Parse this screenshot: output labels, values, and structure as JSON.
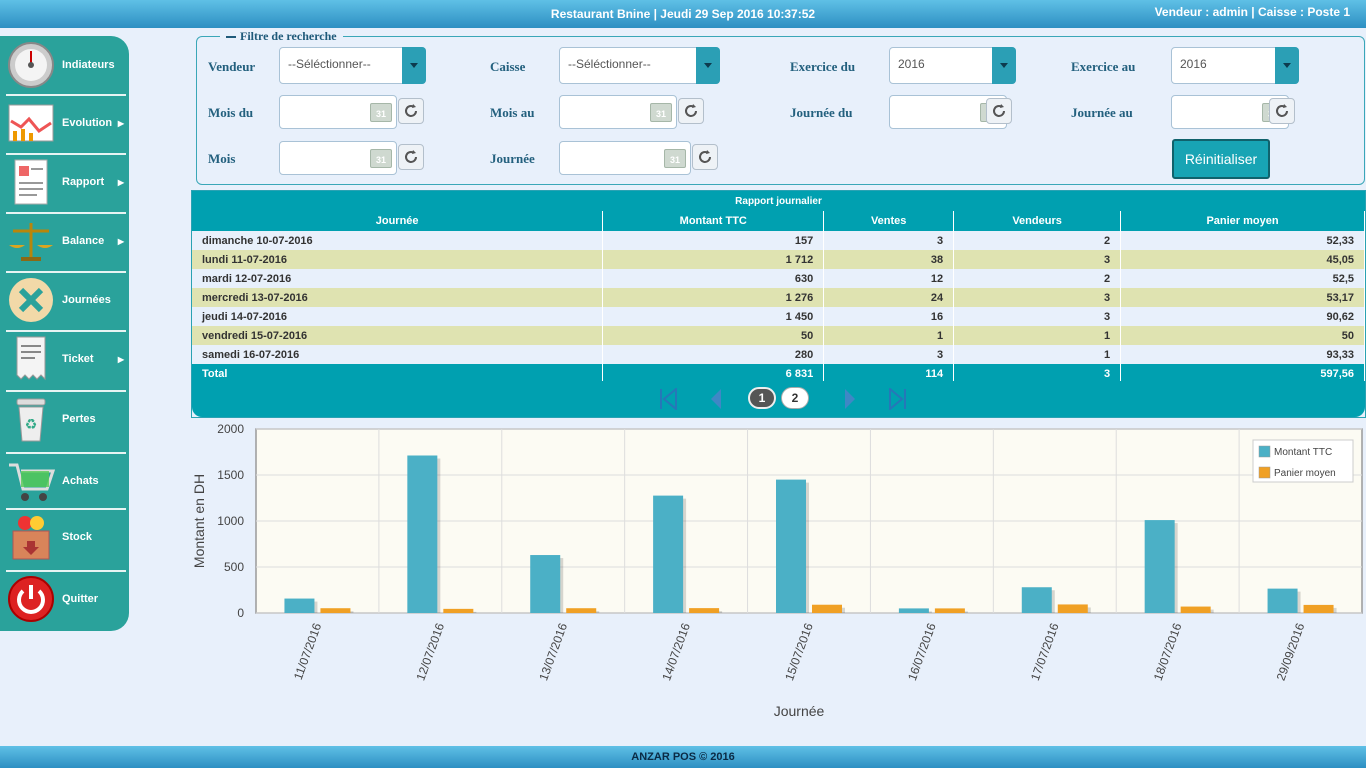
{
  "header": {
    "title": "Restaurant Bnine |  Jeudi 29 Sep 2016 10:37:52",
    "user_info": "Vendeur : admin | Caisse : Poste 1"
  },
  "sidebar": {
    "items": [
      {
        "label": "Indiateurs",
        "icon": "gauge-icon",
        "submenu": false
      },
      {
        "label": "Evolution",
        "icon": "evolution-chart-icon",
        "submenu": true
      },
      {
        "label": "Rapport",
        "icon": "report-icon",
        "submenu": true
      },
      {
        "label": "Balance",
        "icon": "balance-scale-icon",
        "submenu": true
      },
      {
        "label": "Journées",
        "icon": "close-circle-icon",
        "submenu": false
      },
      {
        "label": "Ticket",
        "icon": "receipt-icon",
        "submenu": true
      },
      {
        "label": "Pertes",
        "icon": "trash-icon",
        "submenu": false
      },
      {
        "label": "Achats",
        "icon": "cart-icon",
        "submenu": false
      },
      {
        "label": "Stock",
        "icon": "stock-box-icon",
        "submenu": false
      },
      {
        "label": "Quitter",
        "icon": "power-icon",
        "submenu": false
      }
    ]
  },
  "filter": {
    "legend": "Filtre de recherche",
    "vendeur_label": "Vendeur",
    "vendeur_value": "--Séléctionner--",
    "caisse_label": "Caisse",
    "caisse_value": "--Séléctionner--",
    "exercice_du_label": "Exercice du",
    "exercice_du_value": "2016",
    "exercice_au_label": "Exercice au",
    "exercice_au_value": "2016",
    "mois_du_label": "Mois du",
    "mois_au_label": "Mois au",
    "journee_du_label": "Journée du",
    "journee_au_label": "Journée au",
    "mois_label": "Mois",
    "journee_label": "Journée",
    "calendar_day": "31",
    "reset_label": "Réinitialiser"
  },
  "report": {
    "title": "Rapport journalier",
    "columns": [
      "Journée",
      "Montant TTC",
      "Ventes",
      "Vendeurs",
      "Panier moyen"
    ],
    "rows": [
      [
        "dimanche 10-07-2016",
        "157",
        "3",
        "2",
        "52,33"
      ],
      [
        "lundi 11-07-2016",
        "1 712",
        "38",
        "3",
        "45,05"
      ],
      [
        "mardi 12-07-2016",
        "630",
        "12",
        "2",
        "52,5"
      ],
      [
        "mercredi 13-07-2016",
        "1 276",
        "24",
        "3",
        "53,17"
      ],
      [
        "jeudi 14-07-2016",
        "1 450",
        "16",
        "3",
        "90,62"
      ],
      [
        "vendredi 15-07-2016",
        "50",
        "1",
        "1",
        "50"
      ],
      [
        "samedi 16-07-2016",
        "280",
        "3",
        "1",
        "93,33"
      ]
    ],
    "total": [
      "Total",
      "6 831",
      "114",
      "3",
      "597,56"
    ],
    "pages": [
      "1",
      "2"
    ],
    "current_page": 1
  },
  "chart_data": {
    "type": "bar",
    "categories": [
      "11/07/2016",
      "12/07/2016",
      "13/07/2016",
      "14/07/2016",
      "15/07/2016",
      "16/07/2016",
      "17/07/2016",
      "18/07/2016",
      "29/09/2016"
    ],
    "series": [
      {
        "name": "Montant TTC",
        "color": "#4bb0c6",
        "values": [
          157,
          1712,
          630,
          1276,
          1450,
          50,
          280,
          1010,
          265
        ]
      },
      {
        "name": "Panier moyen",
        "color": "#f0a024",
        "values": [
          52,
          45,
          52,
          53,
          90,
          50,
          93,
          70,
          88
        ]
      }
    ],
    "xlabel": "Journée",
    "ylabel": "Montant en DH",
    "ylim": [
      0,
      2000
    ],
    "yticks": [
      "0",
      "500",
      "1000",
      "1500",
      "2000"
    ],
    "grid": true,
    "legend": "top-right"
  }
}
